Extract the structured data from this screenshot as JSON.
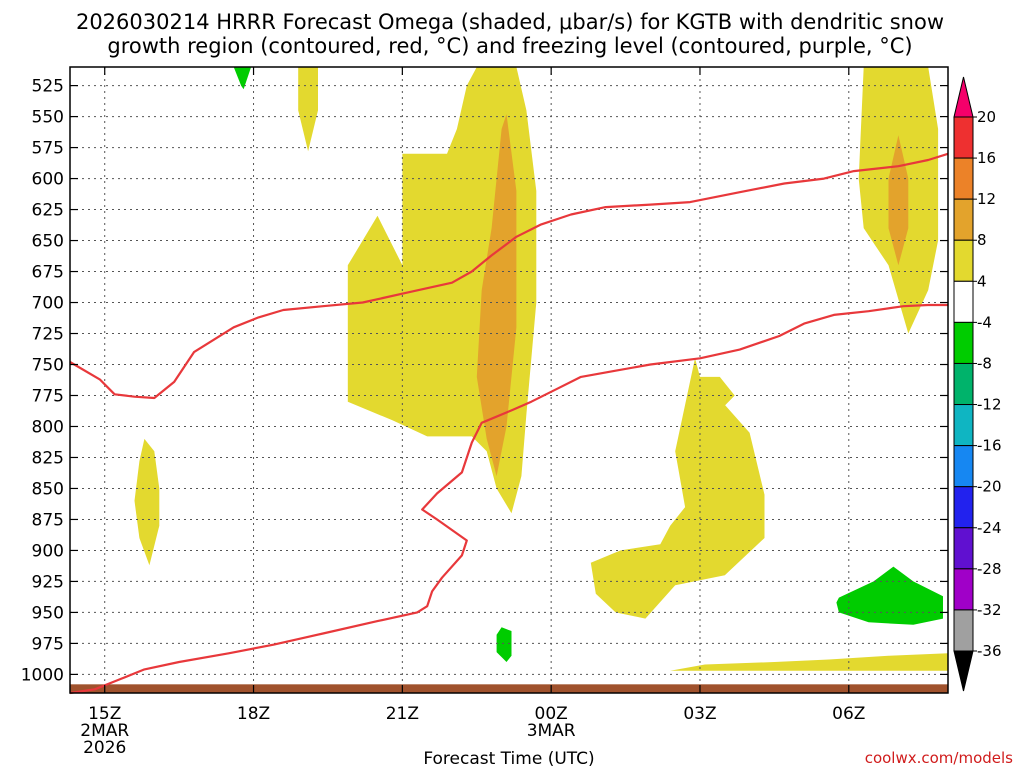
{
  "chart_data": {
    "type": "heatmap",
    "title_line1": "2026030214 HRRR Forecast Omega (shaded, μbar/s) for KGTB with dendritic snow",
    "title_line2": "growth region (contoured, red, °C) and freezing level (contoured, purple, °C)",
    "xlabel": "Forecast Time (UTC)",
    "credit": "coolwx.com/models",
    "y_axis": {
      "scale": "pressure",
      "inverted": true,
      "ticks": [
        525,
        550,
        575,
        600,
        625,
        650,
        675,
        700,
        725,
        750,
        775,
        800,
        825,
        850,
        875,
        900,
        925,
        950,
        975,
        1000
      ],
      "range": [
        510,
        1015
      ]
    },
    "x_axis": {
      "range_hours": [
        14.3,
        32.0
      ],
      "ticks": [
        {
          "hour": 15,
          "line1": "15Z",
          "line2": "2MAR",
          "line3": "2026"
        },
        {
          "hour": 18,
          "line1": "18Z",
          "line2": "",
          "line3": ""
        },
        {
          "hour": 21,
          "line1": "21Z",
          "line2": "",
          "line3": ""
        },
        {
          "hour": 24,
          "line1": "00Z",
          "line2": "3MAR",
          "line3": ""
        },
        {
          "hour": 27,
          "line1": "03Z",
          "line2": "",
          "line3": ""
        },
        {
          "hour": 30,
          "line1": "06Z",
          "line2": "",
          "line3": ""
        }
      ]
    },
    "grid": true,
    "colorbar": {
      "levels": [
        20,
        16,
        12,
        8,
        4,
        -4,
        -8,
        -12,
        -16,
        -20,
        -24,
        -28,
        -32,
        -36
      ],
      "bands": [
        {
          "color": "#f5006a"
        },
        {
          "color": "#ee3030"
        },
        {
          "color": "#ec8228"
        },
        {
          "color": "#e3a32c"
        },
        {
          "color": "#e3d92f"
        },
        {
          "color": "#ffffff"
        },
        {
          "color": "#00cc00"
        },
        {
          "color": "#00b36b"
        },
        {
          "color": "#0fb5c2"
        },
        {
          "color": "#1687f2"
        },
        {
          "color": "#2222ee"
        },
        {
          "color": "#6010d0"
        },
        {
          "color": "#a000c8"
        },
        {
          "color": "#a0a0a0"
        },
        {
          "color": "#000000"
        }
      ]
    },
    "omega_regions": [
      {
        "level": 4,
        "color": "#e3d92f",
        "points": [
          [
            21.0,
            670
          ],
          [
            21.0,
            580
          ],
          [
            21.9,
            580
          ],
          [
            22.1,
            560
          ],
          [
            22.3,
            525
          ],
          [
            22.5,
            510
          ],
          [
            23.3,
            510
          ],
          [
            23.5,
            545
          ],
          [
            23.7,
            610
          ],
          [
            23.7,
            700
          ],
          [
            23.5,
            790
          ],
          [
            23.4,
            840
          ],
          [
            23.2,
            870
          ],
          [
            22.9,
            850
          ],
          [
            22.7,
            820
          ],
          [
            22.4,
            808
          ],
          [
            21.5,
            808
          ],
          [
            20.8,
            795
          ],
          [
            19.9,
            780
          ],
          [
            19.9,
            670
          ],
          [
            20.5,
            630
          ]
        ]
      },
      {
        "level": 8,
        "color": "#e3a32c",
        "points": [
          [
            22.6,
            690
          ],
          [
            22.8,
            640
          ],
          [
            23.0,
            560
          ],
          [
            23.1,
            548
          ],
          [
            23.3,
            610
          ],
          [
            23.3,
            720
          ],
          [
            23.1,
            800
          ],
          [
            22.9,
            840
          ],
          [
            22.7,
            810
          ],
          [
            22.5,
            760
          ]
        ]
      },
      {
        "level": 4,
        "color": "#e3d92f",
        "points": [
          [
            30.3,
            510
          ],
          [
            31.6,
            510
          ],
          [
            31.8,
            560
          ],
          [
            31.8,
            650
          ],
          [
            31.6,
            690
          ],
          [
            31.2,
            725
          ],
          [
            30.8,
            670
          ],
          [
            30.3,
            640
          ],
          [
            30.2,
            600
          ]
        ]
      },
      {
        "level": 8,
        "color": "#e3a32c",
        "points": [
          [
            31.0,
            565
          ],
          [
            31.2,
            600
          ],
          [
            31.2,
            640
          ],
          [
            31.0,
            670
          ],
          [
            30.8,
            640
          ],
          [
            30.8,
            600
          ]
        ]
      },
      {
        "level": 4,
        "color": "#e3d92f",
        "points": [
          [
            19.0,
            510
          ],
          [
            19.3,
            510
          ],
          [
            19.3,
            545
          ],
          [
            19.1,
            578
          ],
          [
            18.9,
            545
          ],
          [
            18.9,
            510
          ]
        ]
      },
      {
        "level": 4,
        "color": "#e3d92f",
        "points": [
          [
            15.8,
            810
          ],
          [
            16.0,
            820
          ],
          [
            16.1,
            850
          ],
          [
            16.1,
            880
          ],
          [
            15.9,
            912
          ],
          [
            15.7,
            890
          ],
          [
            15.6,
            860
          ],
          [
            15.7,
            828
          ]
        ]
      },
      {
        "level": 4,
        "color": "#e3d92f",
        "points": [
          [
            26.6,
            820
          ],
          [
            27.0,
            760
          ],
          [
            28.0,
            805
          ],
          [
            28.3,
            855
          ],
          [
            28.3,
            890
          ],
          [
            27.5,
            920
          ],
          [
            26.5,
            928
          ],
          [
            25.9,
            955
          ],
          [
            25.3,
            950
          ],
          [
            24.9,
            935
          ],
          [
            24.8,
            910
          ],
          [
            25.4,
            900
          ],
          [
            26.2,
            895
          ],
          [
            26.4,
            880
          ],
          [
            26.7,
            865
          ],
          [
            26.5,
            820
          ],
          [
            26.9,
            745
          ],
          [
            27.0,
            760
          ],
          [
            27.4,
            760
          ],
          [
            27.7,
            775
          ]
        ]
      },
      {
        "level": -4,
        "color": "#00cc00",
        "points": [
          [
            29.8,
            938
          ],
          [
            30.5,
            925
          ],
          [
            30.9,
            913
          ],
          [
            31.3,
            925
          ],
          [
            31.9,
            937
          ],
          [
            31.9,
            955
          ],
          [
            31.3,
            960
          ],
          [
            30.4,
            958
          ],
          [
            29.8,
            950
          ],
          [
            29.75,
            942
          ]
        ]
      },
      {
        "level": -4,
        "color": "#00cc00",
        "points": [
          [
            17.6,
            510
          ],
          [
            17.95,
            510
          ],
          [
            17.8,
            528
          ],
          [
            17.75,
            525
          ]
        ]
      },
      {
        "level": -4,
        "color": "#00cc00",
        "points": [
          [
            23.0,
            962
          ],
          [
            23.2,
            965
          ],
          [
            23.2,
            985
          ],
          [
            23.1,
            990
          ],
          [
            22.9,
            982
          ],
          [
            22.9,
            968
          ]
        ]
      },
      {
        "level": 4,
        "color": "#e3d92f",
        "points": [
          [
            26.4,
            997
          ],
          [
            27.1,
            992
          ],
          [
            28.5,
            990
          ],
          [
            29.6,
            988
          ],
          [
            30.8,
            985
          ],
          [
            32.0,
            983
          ],
          [
            32.0,
            997
          ]
        ]
      }
    ],
    "dgz_contours": [
      {
        "points": [
          [
            14.3,
            748
          ],
          [
            14.9,
            762
          ],
          [
            15.2,
            774
          ],
          [
            15.6,
            776
          ],
          [
            16.0,
            777
          ],
          [
            16.4,
            764
          ],
          [
            16.8,
            740
          ],
          [
            17.6,
            720
          ],
          [
            18.1,
            712
          ],
          [
            18.6,
            706
          ],
          [
            19.4,
            703
          ],
          [
            20.2,
            700
          ],
          [
            21.1,
            692
          ],
          [
            22.0,
            684
          ],
          [
            22.4,
            675
          ],
          [
            22.8,
            662
          ],
          [
            23.3,
            647
          ],
          [
            23.8,
            637
          ],
          [
            24.4,
            629
          ],
          [
            25.1,
            623
          ],
          [
            26.0,
            621
          ],
          [
            26.8,
            619
          ],
          [
            27.8,
            611
          ],
          [
            28.7,
            604
          ],
          [
            29.5,
            600
          ],
          [
            30.1,
            594
          ],
          [
            31.0,
            590
          ],
          [
            31.6,
            585
          ],
          [
            32.0,
            580
          ]
        ]
      },
      {
        "points": [
          [
            14.3,
            1015
          ],
          [
            14.8,
            1012
          ],
          [
            15.3,
            1004
          ],
          [
            15.8,
            996
          ],
          [
            16.5,
            990
          ],
          [
            17.5,
            983
          ],
          [
            18.4,
            976
          ],
          [
            19.4,
            967
          ],
          [
            20.5,
            957
          ],
          [
            21.3,
            950
          ],
          [
            21.5,
            945
          ],
          [
            21.6,
            933
          ],
          [
            21.8,
            922
          ],
          [
            22.2,
            904
          ],
          [
            22.3,
            892
          ],
          [
            21.7,
            875
          ],
          [
            21.4,
            867
          ],
          [
            21.7,
            854
          ],
          [
            22.2,
            837
          ],
          [
            22.4,
            813
          ],
          [
            22.6,
            797
          ],
          [
            23.2,
            787
          ],
          [
            23.6,
            780
          ],
          [
            24.1,
            770
          ],
          [
            24.6,
            760
          ],
          [
            25.3,
            755
          ],
          [
            26.0,
            750
          ],
          [
            27.0,
            745
          ],
          [
            27.8,
            738
          ],
          [
            28.6,
            727
          ],
          [
            29.1,
            717
          ],
          [
            29.7,
            710
          ],
          [
            30.4,
            707
          ],
          [
            31.1,
            703
          ],
          [
            31.6,
            702
          ],
          [
            32.0,
            702
          ]
        ]
      }
    ],
    "surface_band": {
      "color": "#a0522d",
      "top_hpa": 1008
    }
  }
}
